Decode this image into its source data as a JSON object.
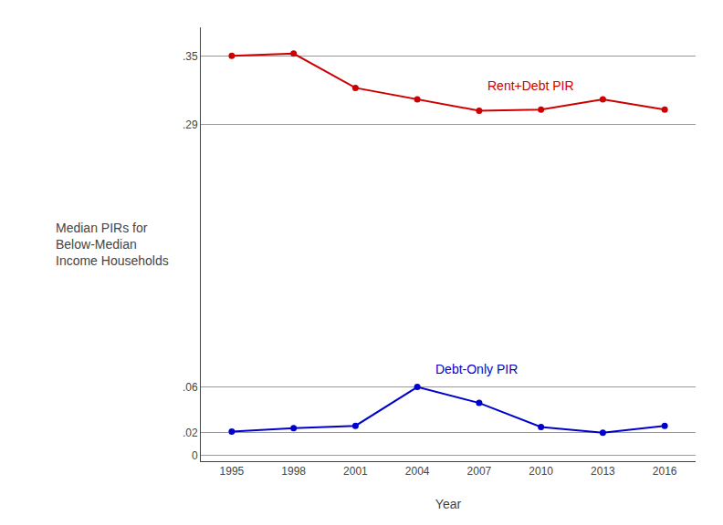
{
  "chart_data": {
    "type": "line",
    "x": [
      1995,
      1998,
      2001,
      2004,
      2007,
      2010,
      2013,
      2016
    ],
    "series": [
      {
        "name": "Rent+Debt PIR",
        "color": "#cc0000",
        "marker": "circle",
        "values": [
          0.35,
          0.352,
          0.322,
          0.312,
          0.302,
          0.303,
          0.312,
          0.303
        ]
      },
      {
        "name": "Debt-Only PIR",
        "color": "#0000cc",
        "marker": "circle",
        "values": [
          0.021,
          0.024,
          0.026,
          0.06,
          0.046,
          0.025,
          0.02,
          0.026
        ]
      }
    ],
    "xlabel": "Year",
    "ylabel": "Median PIRs for\nBelow-Median\nIncome Households",
    "xlim": [
      1993.5,
      2017.5
    ],
    "xticks": [
      1995,
      1998,
      2001,
      2004,
      2007,
      2010,
      2013,
      2016
    ],
    "ylim": [
      -0.005,
      0.375
    ],
    "yticks": [
      0,
      {
        "value": 0.02,
        "label": ".02"
      },
      {
        "value": 0.06,
        "label": ".06"
      },
      {
        "value": 0.29,
        "label": ".29"
      },
      {
        "value": 0.35,
        "label": ".35"
      }
    ],
    "grid": "y",
    "annotations": [
      {
        "text": "Rent+Debt PIR",
        "x": 2007.3,
        "y": 0.316,
        "color": "#cc0000"
      },
      {
        "text": "Debt-Only PIR",
        "x": 2004.8,
        "y": 0.068,
        "color": "#0000cc"
      }
    ]
  }
}
